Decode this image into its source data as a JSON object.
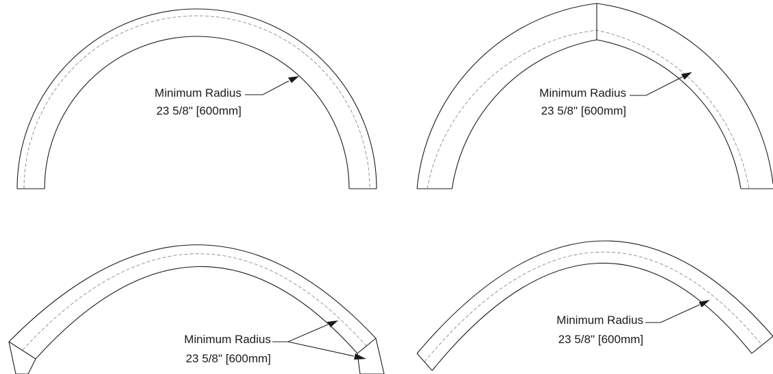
{
  "diagrams": [
    {
      "shape": "semicircular arch",
      "label_line1": "Minimum Radius",
      "label_line2": "23 5/8\" [600mm]"
    },
    {
      "shape": "gothic (pointed) arch",
      "label_line1": "Minimum Radius",
      "label_line2": "23 5/8\" [600mm]"
    },
    {
      "shape": "segmental arch with legs",
      "label_line1": "Minimum Radius",
      "label_line2": "23 5/8\" [600mm]"
    },
    {
      "shape": "segmental arch",
      "label_line1": "Minimum Radius",
      "label_line2": "23 5/8\" [600mm]"
    }
  ]
}
